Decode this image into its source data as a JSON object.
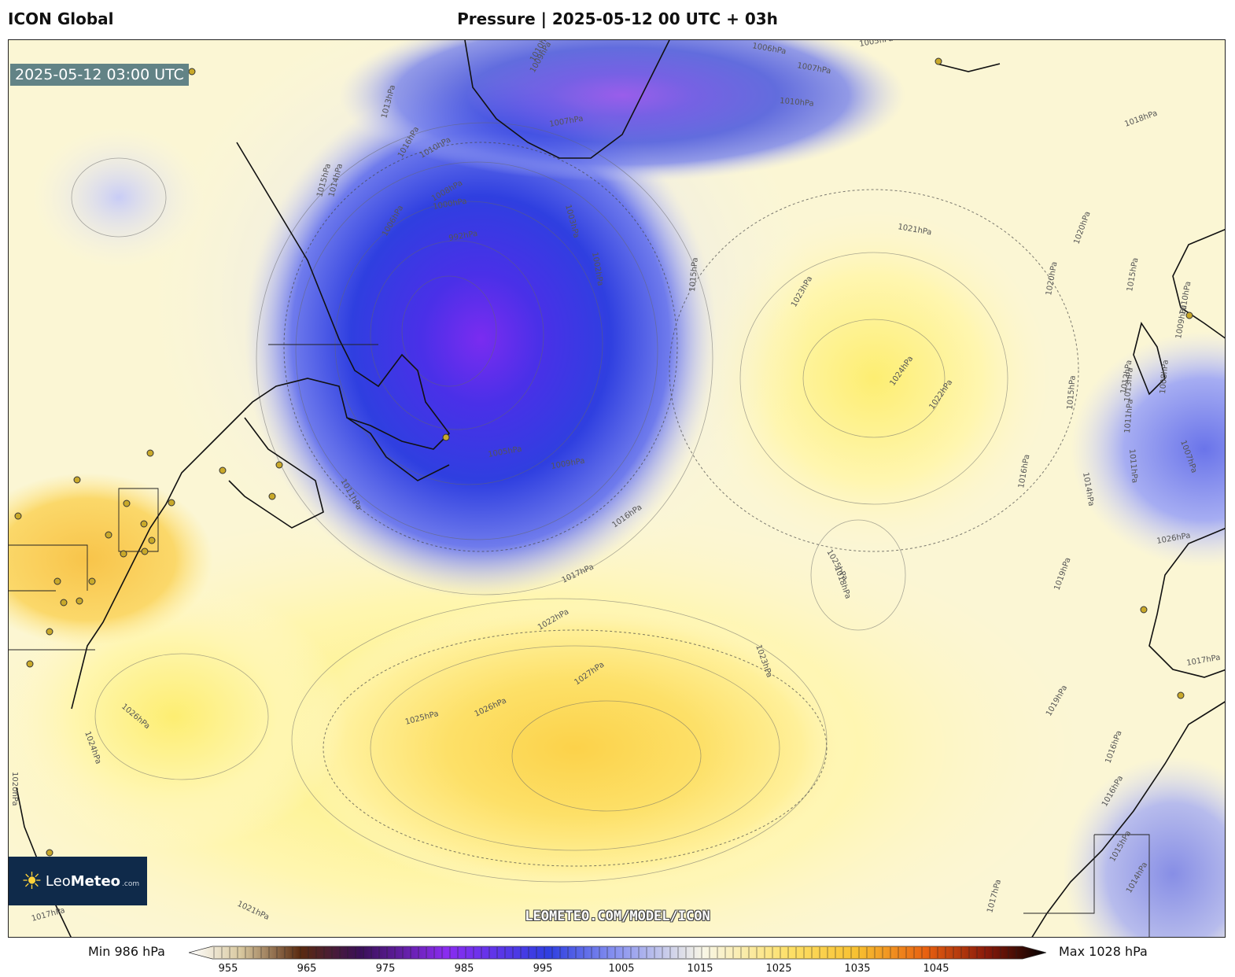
{
  "header": {
    "model": "ICON Global",
    "title": "Pressure | 2025-05-12 00 UTC + 03h"
  },
  "map": {
    "valid_time": "2025-05-12 03:00 UTC",
    "watermark": "LEOMETEO.COM/MODEL/ICON",
    "logo": {
      "part1": "Leo",
      "part2": "Meteo",
      "suffix": ".com"
    },
    "isobar_labels": [
      "1010hPa",
      "1009hPa",
      "1006hPa",
      "1005hPa",
      "1007hPa",
      "1010hPa",
      "1018hPa",
      "1013hPa",
      "1007hPa",
      "1016hPa",
      "1010hPa",
      "1008hPa",
      "1015hPa",
      "1014hPa",
      "1003hPa",
      "1000hPa",
      "1006hPa",
      "1002hPa",
      "992hPa",
      "1021hPa",
      "1020hPa",
      "1023hPa",
      "1015hPa",
      "1024hPa",
      "1022hPa",
      "1005hPa",
      "1009hPa",
      "1011hPa",
      "1016hPa",
      "1017hPa",
      "1018hPa",
      "1022hPa",
      "1023hPa",
      "1025hPa",
      "1026hPa",
      "1027hPa",
      "1019hPa",
      "1026hPa",
      "1024hPa",
      "1020hPa",
      "1021hPa",
      "1017hPa",
      "1014hPa",
      "1013hPa",
      "1011hPa",
      "1015hPa",
      "1016hPa",
      "1017hPa",
      "1025hPa",
      "1026hPa",
      "1016hPa",
      "1015hPa",
      "1014hPa",
      "1012hPa",
      "1011hPa",
      "1008hPa",
      "1007hPa",
      "1009hPa",
      "1010hPa",
      "1017hPa",
      "1016hPa",
      "1015hPa",
      "1019hPa",
      "1020hPa"
    ],
    "colors": {
      "low_core": "#7a2cf0",
      "low": "#2f3fe0",
      "mid_low": "#8a94f0",
      "neutral": "#f8f6e6",
      "high": "#fff27a",
      "high_core": "#fcd24a",
      "city_marker": "#c9a92a"
    }
  },
  "legend": {
    "min_label": "Min 986 hPa",
    "max_label": "Max 1028 hPa",
    "ticks": [
      "955",
      "965",
      "975",
      "985",
      "995",
      "1005",
      "1015",
      "1025",
      "1035",
      "1045"
    ]
  }
}
